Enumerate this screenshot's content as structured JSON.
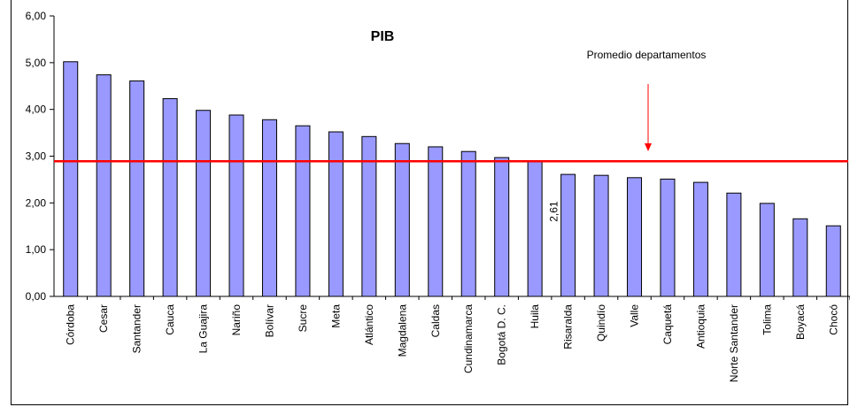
{
  "chart_data": {
    "type": "bar",
    "title": "PIB",
    "xlabel": "",
    "ylabel": "",
    "ylim": [
      0,
      6
    ],
    "yticks": [
      "0,00",
      "1,00",
      "2,00",
      "3,00",
      "4,00",
      "5,00",
      "6,00"
    ],
    "categories": [
      "Córdoba",
      "Cesar",
      "Santander",
      "Cauca",
      "La Guajira",
      "Nariño",
      "Bolívar",
      "Sucre",
      "Meta",
      "Atlántico",
      "Magdalena",
      "Caldas",
      "Cundinamarca",
      "Bogotá D. C.",
      "Huila",
      "Risaralda",
      "Quindío",
      "Valle",
      "Caquetá",
      "Antioquia",
      "Norte Santander",
      "Tolima",
      "Boyacá",
      "Chocó"
    ],
    "values": [
      5.02,
      4.74,
      4.61,
      4.23,
      3.98,
      3.88,
      3.78,
      3.65,
      3.52,
      3.42,
      3.27,
      3.2,
      3.1,
      2.97,
      2.9,
      2.61,
      2.59,
      2.54,
      2.51,
      2.44,
      2.21,
      1.99,
      1.66,
      1.51
    ],
    "reference_line": {
      "value": 2.89,
      "label": "Promedio departamentos"
    },
    "data_label": {
      "category": "Risaralda",
      "text": "2,61"
    },
    "grid": false,
    "colors": {
      "bar": "#9999ff",
      "bar_border": "#000000",
      "reference_line": "#ff0000",
      "arrow": "#ff0000"
    }
  }
}
